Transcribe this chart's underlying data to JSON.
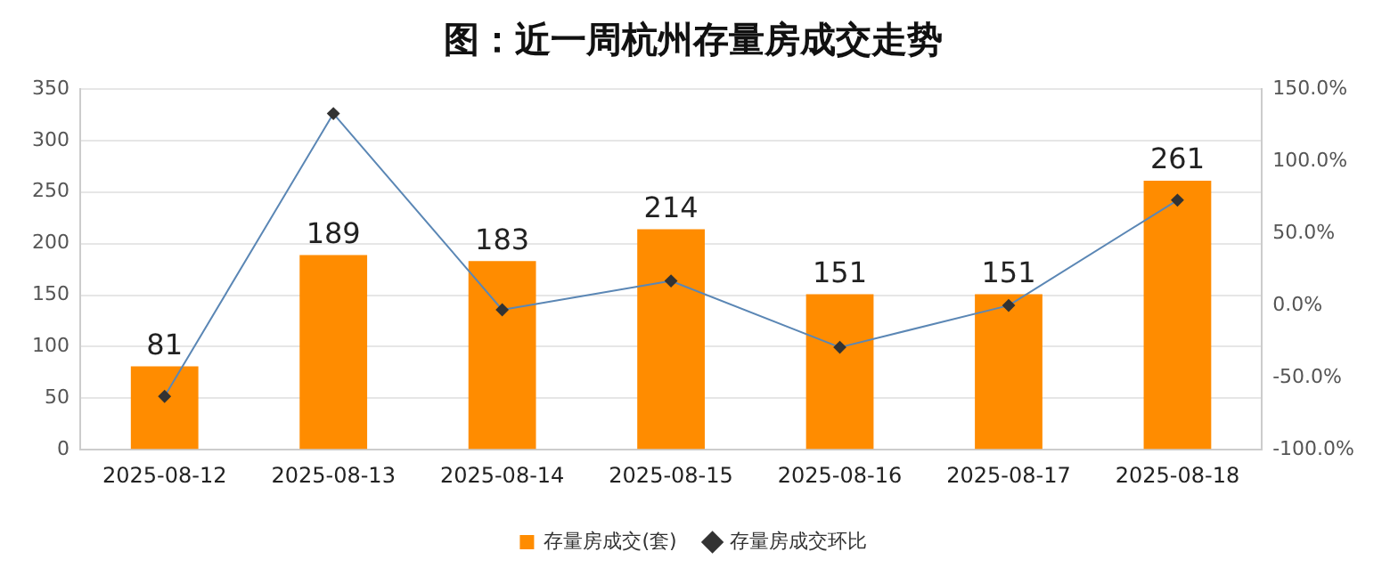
{
  "chart_data": {
    "type": "bar",
    "title": "图：近一周杭州存量房成交走势",
    "categories": [
      "2025-08-12",
      "2025-08-13",
      "2025-08-14",
      "2025-08-15",
      "2025-08-16",
      "2025-08-17",
      "2025-08-18"
    ],
    "series": [
      {
        "name": "存量房成交(套)",
        "color": "#ff8c00",
        "values": [
          81,
          189,
          183,
          214,
          151,
          151,
          261
        ],
        "value_labels": [
          "81",
          "189",
          "183",
          "214",
          "151",
          "151",
          "261"
        ]
      },
      {
        "name": "存量房成交环比",
        "type": "line",
        "axis": "y2",
        "color": "#5b87b5",
        "marker": "diamond",
        "values": [
          -63,
          133,
          -3,
          17,
          -29,
          0,
          73
        ]
      }
    ],
    "ylim": [
      0,
      350
    ],
    "yticks": [
      0,
      50,
      100,
      150,
      200,
      250,
      300,
      350
    ],
    "y2lim": [
      -100,
      150
    ],
    "y2ticks": [
      {
        "value": -100,
        "label": "-100.0%"
      },
      {
        "value": -50,
        "label": "-50.0%"
      },
      {
        "value": 0,
        "label": "0.0%"
      },
      {
        "value": 50,
        "label": "50.0%"
      },
      {
        "value": 100,
        "label": "100.0%"
      },
      {
        "value": 150,
        "label": "150.0%"
      }
    ],
    "grid": "y",
    "legend": "bottom"
  }
}
